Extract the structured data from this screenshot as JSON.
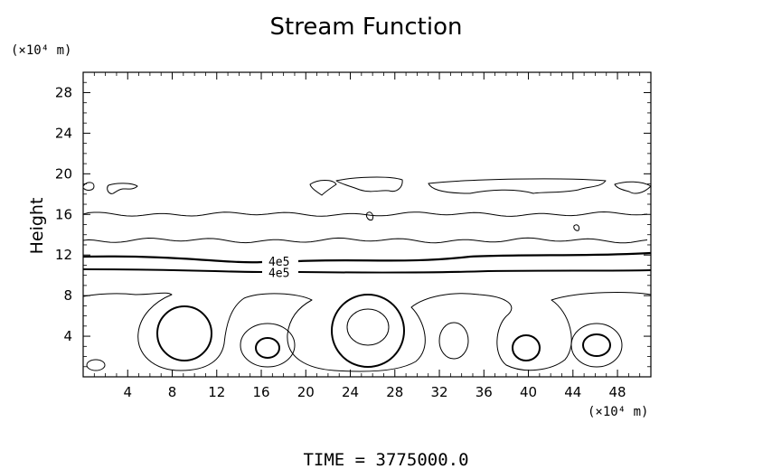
{
  "chart_data": {
    "type": "contour",
    "title": "Stream Function",
    "ylabel": "Height",
    "y_unit_label": "(×10⁴ m)",
    "x_unit_label": "(×10⁴ m)",
    "x_ticks": [
      "4",
      "8",
      "12",
      "16",
      "20",
      "24",
      "28",
      "32",
      "36",
      "40",
      "44",
      "48"
    ],
    "y_ticks": [
      "4",
      "8",
      "12",
      "16",
      "20",
      "24",
      "28"
    ],
    "xlim": [
      0,
      51
    ],
    "ylim": [
      0,
      30
    ],
    "contour_labels": [
      {
        "text": "4e5",
        "x": 17.6,
        "y": 11.3
      },
      {
        "text": "4e5",
        "x": 17.6,
        "y": 10.2
      }
    ],
    "footer": "TIME  =  3775000.0"
  },
  "colors": {
    "line": "#000000",
    "background": "#ffffff"
  }
}
